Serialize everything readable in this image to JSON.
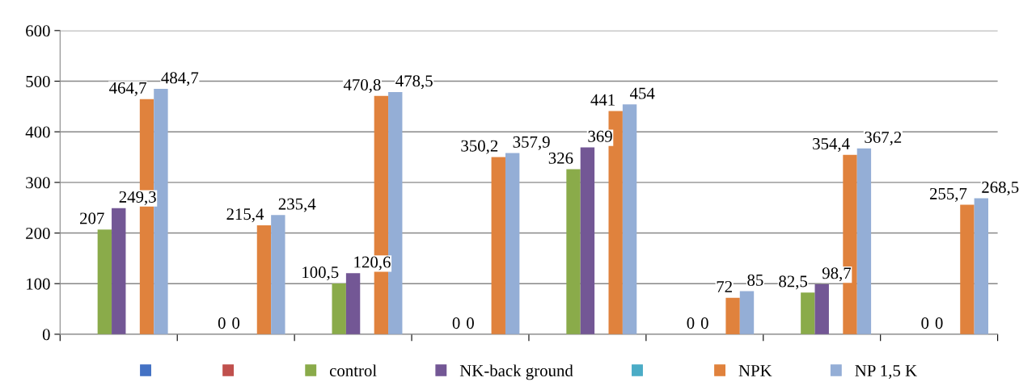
{
  "chart_data": {
    "type": "bar",
    "categories": [
      null,
      null,
      null,
      null,
      null,
      null,
      null,
      null
    ],
    "series": [
      {
        "color": "#4472c4",
        "values": [
          null,
          null,
          null,
          null,
          null,
          null,
          null,
          null
        ]
      },
      {
        "color": "#c0504d",
        "values": [
          null,
          null,
          null,
          null,
          null,
          null,
          null,
          null
        ]
      },
      {
        "name": "control",
        "color": "#8aab4a",
        "values": [
          207,
          0,
          100.5,
          0,
          326,
          0,
          82.5,
          0
        ],
        "value_labels": [
          "207",
          "0",
          "100,5",
          "0",
          "326",
          "0",
          "82,5",
          "0"
        ]
      },
      {
        "name": "NK-back ground",
        "color": "#735795",
        "values": [
          249.3,
          0,
          120.6,
          0,
          369,
          0,
          98.7,
          0
        ],
        "value_labels": [
          "249,3",
          "0",
          "120,6",
          "0",
          "369",
          "0",
          "98,7",
          "0"
        ]
      },
      {
        "color": "#4bacc6",
        "values": [
          null,
          null,
          null,
          null,
          null,
          null,
          null,
          null
        ]
      },
      {
        "name": "NPK",
        "color": "#e0823d",
        "values": [
          464.7,
          215.4,
          470.8,
          350.2,
          441,
          72,
          354.4,
          255.7
        ],
        "value_labels": [
          "464,7",
          "215,4",
          "470,8",
          "350,2",
          "441",
          "72",
          "354,4",
          "255,7"
        ]
      },
      {
        "name": "NP 1,5 K",
        "color": "#94aed6",
        "values": [
          484.7,
          235.4,
          478.5,
          357.9,
          454,
          85,
          367.2,
          268.5
        ],
        "value_labels": [
          "484,7",
          "235,4",
          "478,5",
          "357,9",
          "454",
          "85",
          "367,2",
          "268,5"
        ]
      }
    ],
    "ylim": [
      0,
      600
    ],
    "yticks": [
      0,
      100,
      200,
      300,
      400,
      500,
      600
    ],
    "grid": "y",
    "legend": "bottom",
    "tick_labels": "y"
  }
}
